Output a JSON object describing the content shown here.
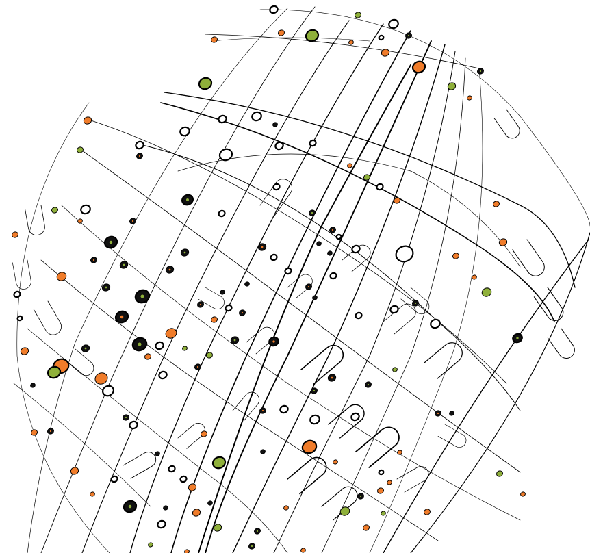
{
  "image": {
    "subject": "circuit-globe-illustration",
    "background_color": "#ffffff",
    "line_color": "#000000",
    "node_colors": {
      "orange": "#f07c2a",
      "green": "#8fb03a",
      "black": "#111111",
      "white": "#ffffff"
    }
  }
}
